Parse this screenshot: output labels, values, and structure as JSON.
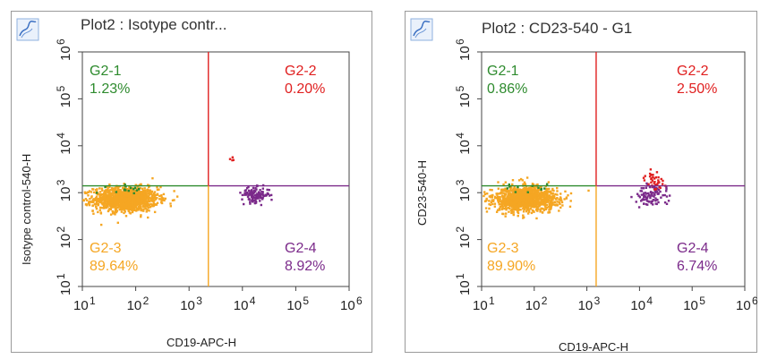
{
  "chart_data": [
    {
      "type": "scatter",
      "title": "Plot2 : Isotype contr...",
      "xlabel": "CD19-APC-H",
      "ylabel": "Isotype control-540-H",
      "x_scale": "log",
      "y_scale": "log",
      "xlim": [
        10,
        1000000
      ],
      "ylim": [
        10,
        1000000
      ],
      "x_ticks": [
        {
          "base": "10",
          "exp": "1"
        },
        {
          "base": "10",
          "exp": "2"
        },
        {
          "base": "10",
          "exp": "3"
        },
        {
          "base": "10",
          "exp": "4"
        },
        {
          "base": "10",
          "exp": "5"
        },
        {
          "base": "10",
          "exp": "6"
        }
      ],
      "y_ticks": [
        {
          "base": "10",
          "exp": "1"
        },
        {
          "base": "10",
          "exp": "2"
        },
        {
          "base": "10",
          "exp": "3"
        },
        {
          "base": "10",
          "exp": "4"
        },
        {
          "base": "10",
          "exp": "5"
        },
        {
          "base": "10",
          "exp": "6"
        }
      ],
      "gate_x": 2300,
      "gate_y": 1400,
      "quadrants": [
        {
          "name": "G2-1",
          "percent": "1.23%",
          "color": "#2e8b2e"
        },
        {
          "name": "G2-2",
          "percent": "0.20%",
          "color": "#e02020"
        },
        {
          "name": "G2-3",
          "percent": "89.64%",
          "color": "#f5a623"
        },
        {
          "name": "G2-4",
          "percent": "8.92%",
          "color": "#7b2a8a"
        }
      ],
      "populations": [
        {
          "quadrant": "G2-3",
          "center_log": [
            1.82,
            2.86
          ],
          "spread_log": [
            0.3,
            0.13
          ],
          "color": "#f5a623"
        },
        {
          "quadrant": "G2-1",
          "center_log": [
            1.85,
            3.08
          ],
          "spread_log": [
            0.18,
            0.04
          ],
          "color": "#2e8b2e"
        },
        {
          "quadrant": "G2-4",
          "center_log": [
            4.25,
            2.95
          ],
          "spread_log": [
            0.13,
            0.08
          ],
          "color": "#7b2a8a"
        },
        {
          "quadrant": "G2-2",
          "center_log": [
            3.8,
            3.72
          ],
          "spread_log": [
            0.03,
            0.02
          ],
          "color": "#e02020"
        }
      ]
    },
    {
      "type": "scatter",
      "title": "Plot2 : CD23-540 - G1",
      "xlabel": "CD19-APC-H",
      "ylabel": "CD23-540-H",
      "x_scale": "log",
      "y_scale": "log",
      "xlim": [
        10,
        1000000
      ],
      "ylim": [
        10,
        1000000
      ],
      "x_ticks": [
        {
          "base": "10",
          "exp": "1"
        },
        {
          "base": "10",
          "exp": "2"
        },
        {
          "base": "10",
          "exp": "3"
        },
        {
          "base": "10",
          "exp": "4"
        },
        {
          "base": "10",
          "exp": "5"
        },
        {
          "base": "10",
          "exp": "6"
        }
      ],
      "y_ticks": [
        {
          "base": "10",
          "exp": "1"
        },
        {
          "base": "10",
          "exp": "2"
        },
        {
          "base": "10",
          "exp": "3"
        },
        {
          "base": "10",
          "exp": "4"
        },
        {
          "base": "10",
          "exp": "5"
        },
        {
          "base": "10",
          "exp": "6"
        }
      ],
      "gate_x": 1500,
      "gate_y": 1400,
      "quadrants": [
        {
          "name": "G2-1",
          "percent": "0.86%",
          "color": "#2e8b2e"
        },
        {
          "name": "G2-2",
          "percent": "2.50%",
          "color": "#e02020"
        },
        {
          "name": "G2-3",
          "percent": "89.90%",
          "color": "#f5a623"
        },
        {
          "name": "G2-4",
          "percent": "6.74%",
          "color": "#7b2a8a"
        }
      ],
      "populations": [
        {
          "quadrant": "G2-3",
          "center_log": [
            1.82,
            2.86
          ],
          "spread_log": [
            0.3,
            0.13
          ],
          "color": "#f5a623"
        },
        {
          "quadrant": "G2-1",
          "center_log": [
            1.85,
            3.12
          ],
          "spread_log": [
            0.2,
            0.06
          ],
          "color": "#2e8b2e"
        },
        {
          "quadrant": "G2-4",
          "center_log": [
            4.25,
            2.95
          ],
          "spread_log": [
            0.16,
            0.12
          ],
          "color": "#7b2a8a"
        },
        {
          "quadrant": "G2-2",
          "center_log": [
            4.3,
            3.25
          ],
          "spread_log": [
            0.1,
            0.1
          ],
          "color": "#e02020"
        }
      ]
    }
  ]
}
